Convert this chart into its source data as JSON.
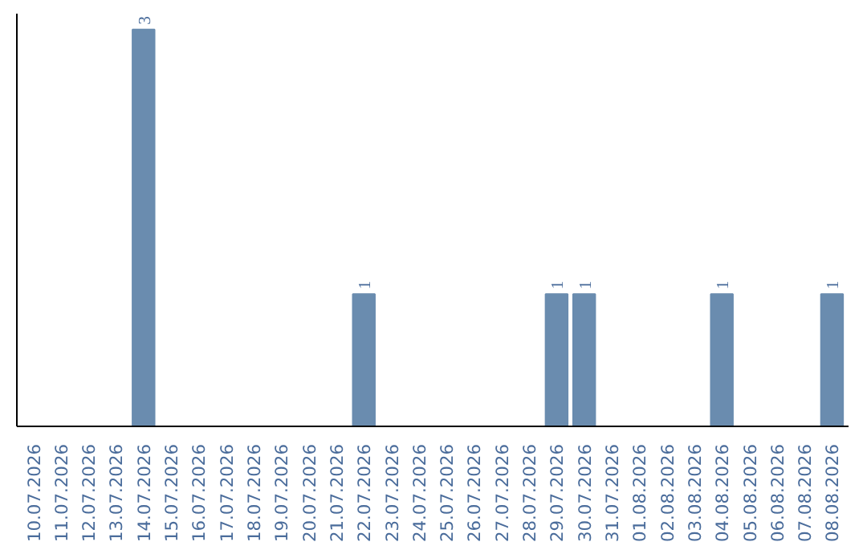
{
  "chart_data": {
    "type": "bar",
    "categories": [
      "10.07.2026",
      "11.07.2026",
      "12.07.2026",
      "13.07.2026",
      "14.07.2026",
      "15.07.2026",
      "16.07.2026",
      "17.07.2026",
      "18.07.2026",
      "19.07.2026",
      "20.07.2026",
      "21.07.2026",
      "22.07.2026",
      "23.07.2026",
      "24.07.2026",
      "25.07.2026",
      "26.07.2026",
      "27.07.2026",
      "28.07.2026",
      "29.07.2026",
      "30.07.2026",
      "31.07.2026",
      "01.08.2026",
      "02.08.2026",
      "03.08.2026",
      "04.08.2026",
      "05.08.2026",
      "06.08.2026",
      "07.08.2026",
      "08.08.2026"
    ],
    "values": [
      0,
      0,
      0,
      0,
      3,
      0,
      0,
      0,
      0,
      0,
      0,
      0,
      1,
      0,
      0,
      0,
      0,
      0,
      0,
      1,
      1,
      0,
      0,
      0,
      0,
      1,
      0,
      0,
      0,
      1
    ],
    "value_labels": [
      null,
      null,
      null,
      null,
      "3",
      null,
      null,
      null,
      null,
      null,
      null,
      null,
      "1",
      null,
      null,
      null,
      null,
      null,
      null,
      "1",
      "1",
      null,
      null,
      null,
      null,
      "1",
      null,
      null,
      null,
      "1"
    ],
    "color": "#6a8caf",
    "grid": false,
    "tick_labels": "x"
  }
}
